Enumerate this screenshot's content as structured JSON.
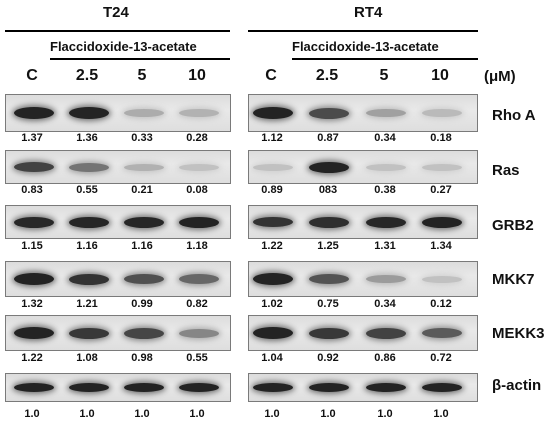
{
  "panels": [
    {
      "title": "T24",
      "treatment": "Flaccidoxide-13-acetate",
      "concentrations": [
        "C",
        "2.5",
        "5",
        "10"
      ],
      "values": [
        [
          "1.37",
          "1.36",
          "0.33",
          "0.28"
        ],
        [
          "0.83",
          "0.55",
          "0.21",
          "0.08"
        ],
        [
          "1.15",
          "1.16",
          "1.16",
          "1.18"
        ],
        [
          "1.32",
          "1.21",
          "0.99",
          "0.82"
        ],
        [
          "1.22",
          "1.08",
          "0.98",
          "0.55"
        ],
        [
          "1.0",
          "1.0",
          "1.0",
          "1.0"
        ]
      ]
    },
    {
      "title": "RT4",
      "treatment": "Flaccidoxide-13-acetate",
      "concentrations": [
        "C",
        "2.5",
        "5",
        "10"
      ],
      "values": [
        [
          "1.12",
          "0.87",
          "0.34",
          "0.18"
        ],
        [
          "0.89",
          "083",
          "0.38",
          "0.27"
        ],
        [
          "1.22",
          "1.25",
          "1.31",
          "1.34"
        ],
        [
          "1.02",
          "0.75",
          "0.34",
          "0.12"
        ],
        [
          "1.04",
          "0.92",
          "0.86",
          "0.72"
        ],
        [
          "1.0",
          "1.0",
          "1.0",
          "1.0"
        ]
      ]
    }
  ],
  "unit": "(μM)",
  "proteins": [
    "Rho A",
    "Ras",
    "GRB2",
    "MKK7",
    "MEKK3",
    "β-actin"
  ]
}
